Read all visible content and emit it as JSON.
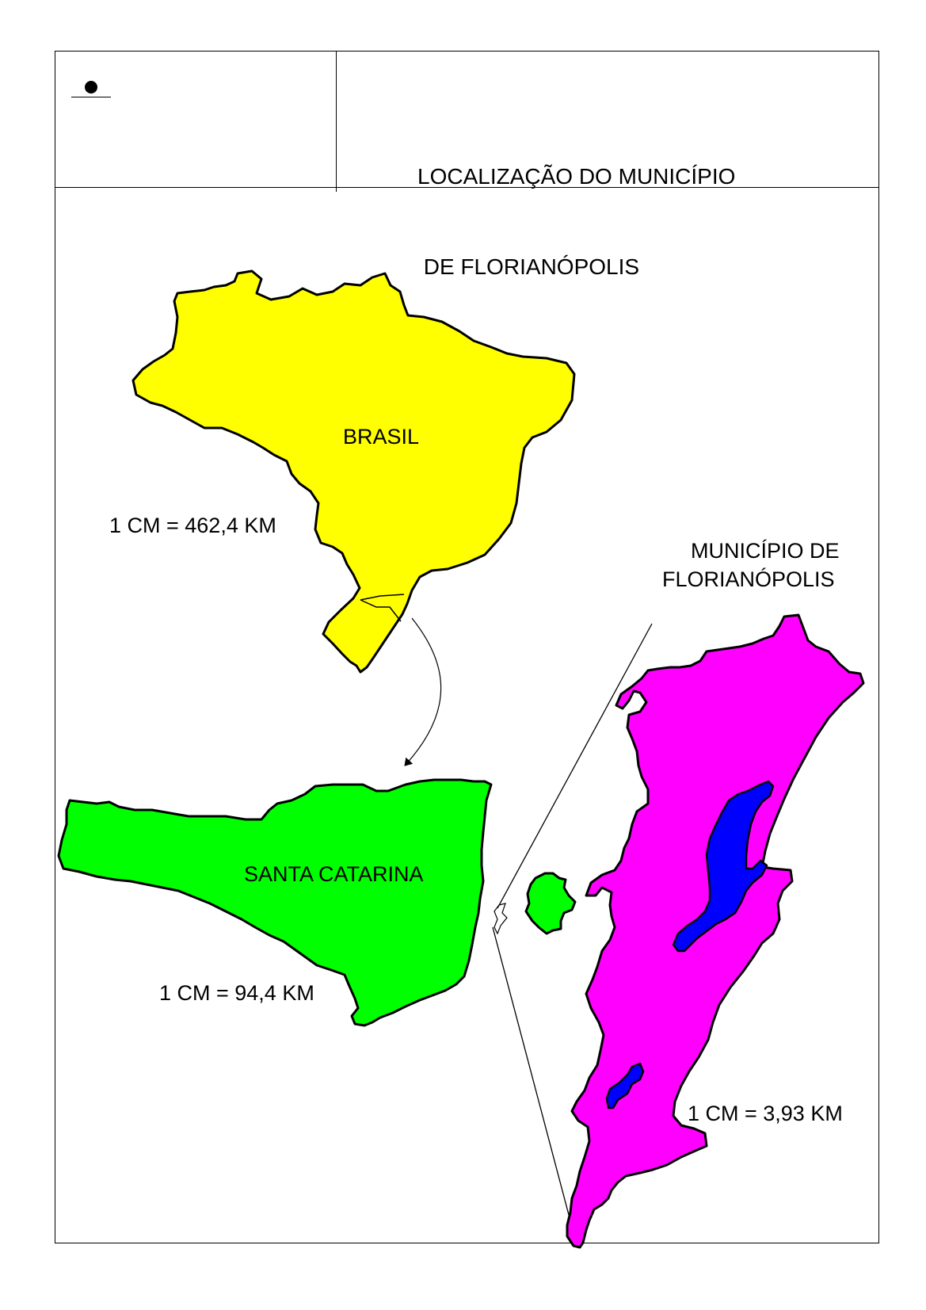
{
  "title": {
    "line1": "LOCALIZAÇÃO DO MUNICÍPIO",
    "line2": " DE FLORIANÓPOLIS"
  },
  "regions": {
    "brasil": {
      "name": "BRASIL",
      "scale": "1 CM = 462,4 KM",
      "color": "#ffff00"
    },
    "santa_catarina": {
      "name": "SANTA CATARINA",
      "scale": "1 CM = 94,4 KM",
      "color": "#00ff00"
    },
    "florianopolis": {
      "name_line1": "MUNICÍPIO DE",
      "name_line2": "FLORIANÓPOLIS",
      "scale": "1 CM = 3,93 KM",
      "color": "#ff00ff"
    }
  },
  "lagoon_color": "#0000ff",
  "logo": {
    "icon": "dot-icon"
  }
}
